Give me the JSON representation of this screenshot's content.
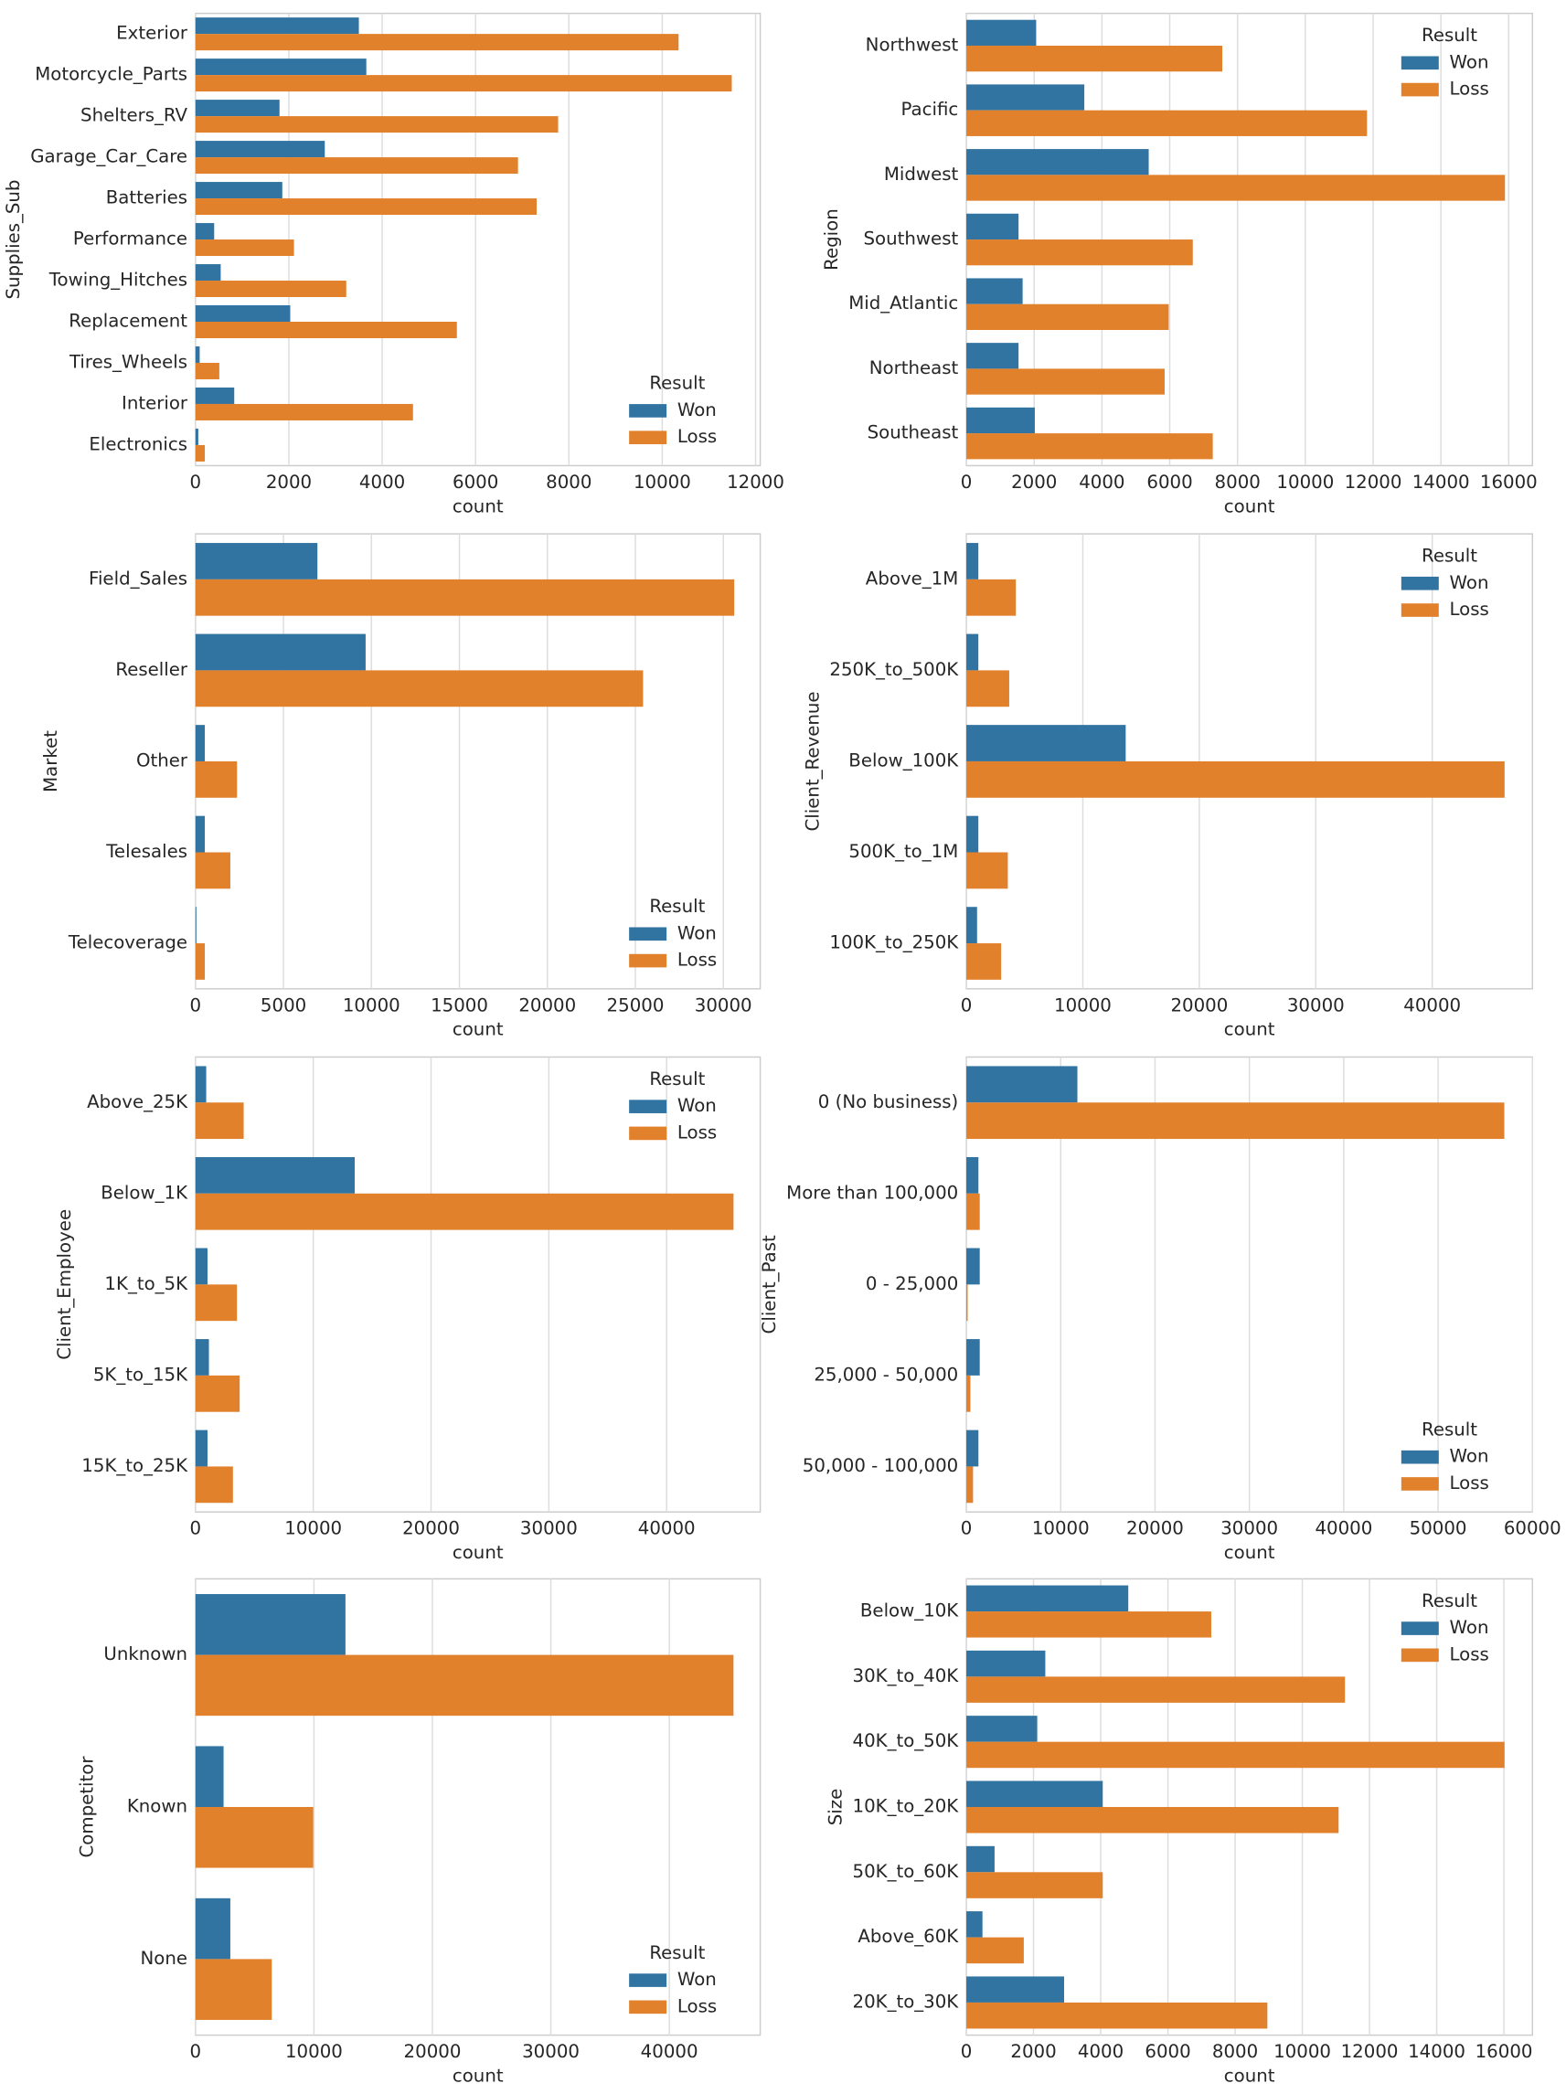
{
  "chart_data": [
    {
      "type": "bar",
      "orientation": "horizontal",
      "ylabel": "Supplies_Sub",
      "xlabel": "count",
      "categories": [
        "Exterior",
        "Motorcycle_Parts",
        "Shelters_RV",
        "Garage_Car_Care",
        "Batteries",
        "Performance",
        "Towing_Hitches",
        "Replacement",
        "Tires_Wheels",
        "Interior",
        "Electronics"
      ],
      "series": [
        {
          "name": "Won",
          "color": "#3274a1",
          "values": [
            3500,
            3660,
            1800,
            2770,
            1860,
            400,
            540,
            2030,
            90,
            830,
            60
          ]
        },
        {
          "name": "Loss",
          "color": "#e1812c",
          "values": [
            10350,
            11490,
            7770,
            6910,
            7310,
            2110,
            3230,
            5600,
            510,
            4660,
            200
          ]
        }
      ],
      "xlim": [
        0,
        12100
      ],
      "xticks": [
        0,
        2000,
        4000,
        6000,
        8000,
        10000,
        12000
      ],
      "grid": true,
      "legend_title": "Result",
      "legend": "lower right"
    },
    {
      "type": "bar",
      "orientation": "horizontal",
      "ylabel": "Region",
      "xlabel": "count",
      "categories": [
        "Northwest",
        "Pacific",
        "Midwest",
        "Southwest",
        "Mid_Atlantic",
        "Northeast",
        "Southeast"
      ],
      "series": [
        {
          "name": "Won",
          "color": "#3274a1",
          "values": [
            2060,
            3480,
            5380,
            1540,
            1660,
            1540,
            2020
          ]
        },
        {
          "name": "Loss",
          "color": "#e1812c",
          "values": [
            7550,
            11820,
            15890,
            6680,
            5970,
            5850,
            7270
          ]
        }
      ],
      "xlim": [
        0,
        16700
      ],
      "xticks": [
        0,
        2000,
        4000,
        6000,
        8000,
        10000,
        12000,
        14000,
        16000
      ],
      "grid": true,
      "legend_title": "Result",
      "legend": "upper right"
    },
    {
      "type": "bar",
      "orientation": "horizontal",
      "ylabel": "Market",
      "xlabel": "count",
      "categories": [
        "Field_Sales",
        "Reseller",
        "Other",
        "Telesales",
        "Telecoverage"
      ],
      "series": [
        {
          "name": "Won",
          "color": "#3274a1",
          "values": [
            6930,
            9670,
            530,
            530,
            50
          ]
        },
        {
          "name": "Loss",
          "color": "#e1812c",
          "values": [
            30620,
            25440,
            2360,
            1980,
            530
          ]
        }
      ],
      "xlim": [
        0,
        32100
      ],
      "xticks": [
        0,
        5000,
        10000,
        15000,
        20000,
        25000,
        30000
      ],
      "grid": true,
      "legend_title": "Result",
      "legend": "lower right"
    },
    {
      "type": "bar",
      "orientation": "horizontal",
      "ylabel": "Client_Revenue",
      "xlabel": "count",
      "categories": [
        "Above_1M",
        "250K_to_500K",
        "Below_100K",
        "500K_to_1M",
        "100K_to_250K"
      ],
      "series": [
        {
          "name": "Won",
          "color": "#3274a1",
          "values": [
            1030,
            1030,
            13680,
            1030,
            920
          ]
        },
        {
          "name": "Loss",
          "color": "#e1812c",
          "values": [
            4250,
            3680,
            46210,
            3560,
            2990
          ]
        }
      ],
      "xlim": [
        0,
        48600
      ],
      "xticks": [
        0,
        10000,
        20000,
        30000,
        40000
      ],
      "grid": true,
      "legend_title": "Result",
      "legend": "upper right"
    },
    {
      "type": "bar",
      "orientation": "horizontal",
      "ylabel": "Client_Employee",
      "xlabel": "count",
      "categories": [
        "Above_25K",
        "Below_1K",
        "1K_to_5K",
        "5K_to_15K",
        "15K_to_25K"
      ],
      "series": [
        {
          "name": "Won",
          "color": "#3274a1",
          "values": [
            910,
            13520,
            1020,
            1140,
            1020
          ]
        },
        {
          "name": "Loss",
          "color": "#e1812c",
          "values": [
            4090,
            45680,
            3520,
            3750,
            3180
          ]
        }
      ],
      "xlim": [
        0,
        47950
      ],
      "xticks": [
        0,
        10000,
        20000,
        30000,
        40000
      ],
      "grid": true,
      "legend_title": "Result",
      "legend": "upper right"
    },
    {
      "type": "bar",
      "orientation": "horizontal",
      "ylabel": "Client_Past",
      "xlabel": "count",
      "categories": [
        "0 (No business)",
        "More than 100,000",
        "0 - 25,000",
        "25,000 - 50,000",
        "50,000 - 100,000"
      ],
      "series": [
        {
          "name": "Won",
          "color": "#3274a1",
          "values": [
            11770,
            1280,
            1420,
            1420,
            1280
          ]
        },
        {
          "name": "Loss",
          "color": "#e1812c",
          "values": [
            57020,
            1420,
            140,
            430,
            710
          ]
        }
      ],
      "xlim": [
        0,
        60000
      ],
      "xticks": [
        0,
        10000,
        20000,
        30000,
        40000,
        50000,
        60000
      ],
      "grid": true,
      "legend_title": "Result",
      "legend": "lower right"
    },
    {
      "type": "bar",
      "orientation": "horizontal",
      "ylabel": "Competitor",
      "xlabel": "count",
      "categories": [
        "Unknown",
        "Known",
        "None"
      ],
      "series": [
        {
          "name": "Won",
          "color": "#3274a1",
          "values": [
            12660,
            2370,
            2940
          ]
        },
        {
          "name": "Loss",
          "color": "#e1812c",
          "values": [
            45420,
            9940,
            6440
          ]
        }
      ],
      "xlim": [
        0,
        47680
      ],
      "xticks": [
        0,
        10000,
        20000,
        30000,
        40000
      ],
      "grid": true,
      "legend_title": "Result",
      "legend": "lower right"
    },
    {
      "type": "bar",
      "orientation": "horizontal",
      "ylabel": "Size",
      "xlabel": "count",
      "categories": [
        "Below_10K",
        "30K_to_40K",
        "40K_to_50K",
        "10K_to_20K",
        "50K_to_60K",
        "Above_60K",
        "20K_to_30K"
      ],
      "series": [
        {
          "name": "Won",
          "color": "#3274a1",
          "values": [
            4820,
            2350,
            2110,
            4060,
            840,
            480,
            2910
          ]
        },
        {
          "name": "Loss",
          "color": "#e1812c",
          "values": [
            7290,
            11270,
            16020,
            11080,
            4060,
            1710,
            8960
          ]
        }
      ],
      "xlim": [
        0,
        16850
      ],
      "xticks": [
        0,
        2000,
        4000,
        6000,
        8000,
        10000,
        12000,
        14000,
        16000
      ],
      "grid": true,
      "legend_title": "Result",
      "legend": "upper right"
    }
  ]
}
